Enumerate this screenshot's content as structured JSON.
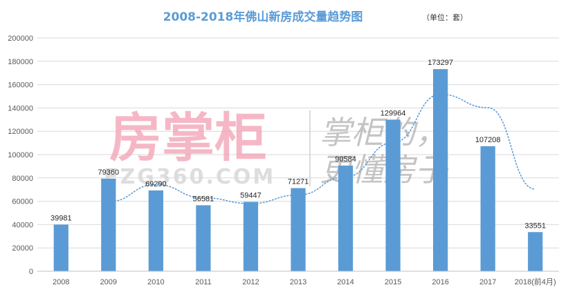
{
  "chart_data": {
    "type": "bar",
    "title": "2008-2018年佛山新房成交量趋势图",
    "unit_label": "（单位：套）",
    "categories": [
      "2008",
      "2009",
      "2010",
      "2011",
      "2012",
      "2013",
      "2014",
      "2015",
      "2016",
      "2017",
      "2018(前4月)"
    ],
    "values": [
      39981,
      79360,
      69290,
      56581,
      59447,
      71271,
      90584,
      129964,
      173297,
      107208,
      33551
    ],
    "data_labels": [
      "39981",
      "79360",
      "69290",
      "56581",
      "59447",
      "71271",
      "90584",
      "129964",
      "173297",
      "107208",
      "33551"
    ],
    "trendline": {
      "style": "dotted",
      "x": [
        "2009",
        "2010",
        "2011",
        "2012",
        "2013",
        "2014",
        "2015",
        "2016",
        "2017",
        "2018(前4月)"
      ],
      "values": [
        59670,
        74325,
        62936,
        58014,
        65359,
        80928,
        110274,
        151631,
        140253,
        70380
      ]
    },
    "ylim": [
      0,
      200000
    ],
    "yticks": [
      0,
      20000,
      40000,
      60000,
      80000,
      100000,
      120000,
      140000,
      160000,
      180000,
      200000
    ],
    "ytick_labels": [
      "0",
      "20000",
      "40000",
      "60000",
      "80000",
      "100000",
      "120000",
      "140000",
      "160000",
      "180000",
      "200000"
    ],
    "grid": true,
    "legend": "none",
    "colors": {
      "bar": "#5b9bd5",
      "trend": "#5b9bd5",
      "grid": "#d9d9d9",
      "title": "#5b9bd5"
    }
  },
  "watermark": {
    "brand": "房掌柜",
    "url": "FZG360.COM",
    "slogan_line1": "掌柜的，",
    "slogan_line2": "更懂房子"
  }
}
